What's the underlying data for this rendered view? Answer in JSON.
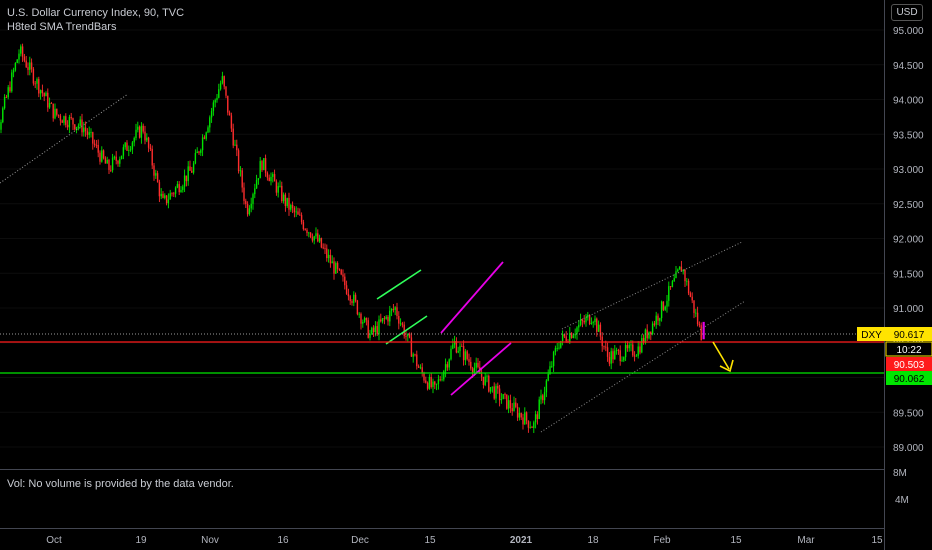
{
  "header": {
    "title": "U.S. Dollar Currency Index, 90, TVC",
    "indicator": "H8ted SMA TrendBars"
  },
  "currency_button": "USD",
  "volume_pane": {
    "message": "Vol: No volume is provided by the data vendor.",
    "tick_labels": [
      "8M",
      "4M"
    ]
  },
  "price_labels": {
    "symbol": "DXY",
    "last_price": "90.617",
    "countdown": "10:22",
    "red_line_price": "90.503",
    "green_line_price": "90.062"
  },
  "colors": {
    "up_bar": "#00e600",
    "down_bar": "#ff2d2d",
    "last_price_tag": "#ffe300",
    "red_level": "#ff1a1a",
    "green_level": "#00e600",
    "channel_green": "#2fff5a",
    "channel_magenta": "#e600e6",
    "arrow": "#ffe300"
  },
  "chart_data": {
    "type": "candlestick",
    "yticks": [
      "95.000",
      "94.500",
      "94.000",
      "93.500",
      "93.000",
      "92.500",
      "92.000",
      "91.500",
      "91.000",
      "90.500",
      "90.000",
      "89.500",
      "89.000"
    ],
    "ylim": [
      88.8,
      95.2
    ],
    "xticks": [
      "Oct",
      "19",
      "Nov",
      "16",
      "Dec",
      "15",
      "2021",
      "18",
      "Feb",
      "15",
      "Mar",
      "15"
    ],
    "horizontal_levels": [
      90.617,
      90.503,
      90.062
    ],
    "approx_path": [
      {
        "x": "Sep 17",
        "y": 92.9
      },
      {
        "x": "Sep 24",
        "y": 94.7
      },
      {
        "x": "Oct 1",
        "y": 93.8
      },
      {
        "x": "Oct 7",
        "y": 93.6
      },
      {
        "x": "Oct 12",
        "y": 93.0
      },
      {
        "x": "Oct 19",
        "y": 93.6
      },
      {
        "x": "Oct 23",
        "y": 92.5
      },
      {
        "x": "Oct 29",
        "y": 93.0
      },
      {
        "x": "Nov 4",
        "y": 94.3
      },
      {
        "x": "Nov 9",
        "y": 92.4
      },
      {
        "x": "Nov 12",
        "y": 93.1
      },
      {
        "x": "Nov 17",
        "y": 92.5
      },
      {
        "x": "Nov 23",
        "y": 92.0
      },
      {
        "x": "Nov 30",
        "y": 91.2
      },
      {
        "x": "Dec 4",
        "y": 90.6
      },
      {
        "x": "Dec 9",
        "y": 91.0
      },
      {
        "x": "Dec 14",
        "y": 90.1
      },
      {
        "x": "Dec 17",
        "y": 89.8
      },
      {
        "x": "Dec 21",
        "y": 90.5
      },
      {
        "x": "Dec 29",
        "y": 89.8
      },
      {
        "x": "Jan 6",
        "y": 89.3
      },
      {
        "x": "Jan 11",
        "y": 90.5
      },
      {
        "x": "Jan 18",
        "y": 90.9
      },
      {
        "x": "Jan 21",
        "y": 90.3
      },
      {
        "x": "Jan 27",
        "y": 90.4
      },
      {
        "x": "Feb 1",
        "y": 91.0
      },
      {
        "x": "Feb 5",
        "y": 91.6
      },
      {
        "x": "Feb 9",
        "y": 90.6
      }
    ]
  }
}
